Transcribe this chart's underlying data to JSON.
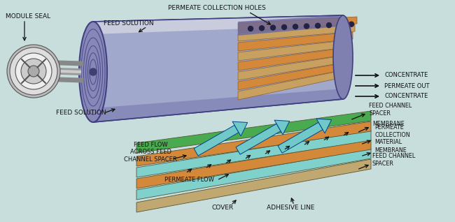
{
  "labels": {
    "module_seal": "MODULE SEAL",
    "feed_solution_top": "FEED SOLUTION",
    "feed_solution_bottom": "FEED SOLUTION",
    "permeate_collection_holes": "PERMEATE COLLECTION HOLES",
    "concentrate_top": "CONCENTRATE",
    "permeate_out": "PERMEATE OUT",
    "concentrate_bottom": "CONCENTRATE",
    "feed_channel_spacer_top": "FEED CHANNEL\nSPACER",
    "membrane_top": "MEMBRANE",
    "permeate_collection_material": "PERMEATE\nCOLLECTION\nMATERIAL",
    "membrane_bottom": "MEMBRANE",
    "feed_channel_spacer_bottom": "FEED CHANNEL\nSPACER",
    "feed_flow": "FEED FLOW\nACROSS FEED\nCHANNEL SPACER",
    "permeate_flow": "PERMEATE FLOW",
    "cover": "COVER",
    "adhesive_line": "ADHESIVE LINE"
  },
  "colors": {
    "background": "#c8dedd",
    "cyl_body": "#a0a8cc",
    "cyl_light": "#c8ccdd",
    "cyl_dark": "#7070a8",
    "cyl_outline": "#404080",
    "spiral_orange": "#d4883a",
    "spiral_tan": "#c8a060",
    "spiral_dark": "#5a5080",
    "wheel_rim": "#cccccc",
    "wheel_mid": "#e8e8e8",
    "wheel_hub": "#aaaaaa",
    "wheel_edge": "#444444",
    "pipe_dark": "#888888",
    "pipe_light": "#cccccc",
    "layer_green": "#4aaa50",
    "layer_orange": "#d4883a",
    "layer_cyan": "#80d0cc",
    "layer_tan": "#c8a870",
    "layer_cover": "#c0a870",
    "arrow_cyan": "#70c8c8",
    "arrow_dark": "#004488",
    "black_arrow": "#111111",
    "text_color": "#111111",
    "dot_color": "#222244"
  },
  "figsize": [
    6.5,
    3.18
  ],
  "dpi": 100
}
